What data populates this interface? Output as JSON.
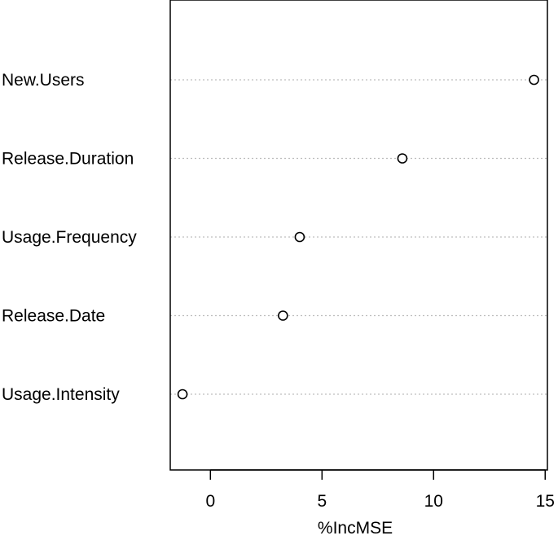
{
  "chart_data": {
    "type": "scatter",
    "title": "",
    "xlabel": "%IncMSE",
    "ylabel": "",
    "categories": [
      "New.Users",
      "Release.Duration",
      "Usage.Frequency",
      "Release.Date",
      "Usage.Intensity"
    ],
    "values": [
      14.5,
      8.6,
      4.0,
      3.25,
      -1.25
    ],
    "xlim": [
      -1.8,
      15.1
    ],
    "xticks": [
      "0",
      "5",
      "10",
      "15"
    ],
    "grid": "dotted horizontal",
    "legend": "none"
  }
}
